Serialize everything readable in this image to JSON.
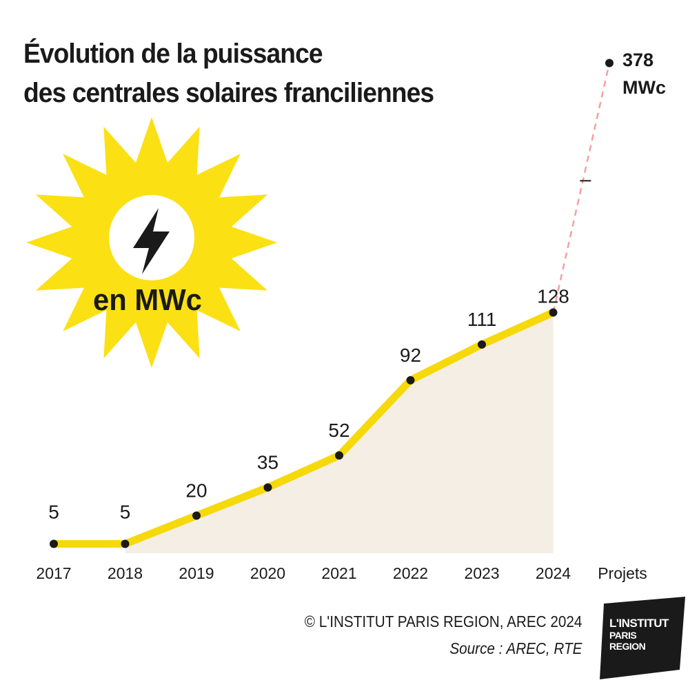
{
  "title": {
    "line1": "Évolution de la puissance",
    "line2": "des centrales solaires franciliennes"
  },
  "unit_label": "en MWc",
  "chart_data": {
    "type": "area",
    "title": "Évolution de la puissance des centrales solaires franciliennes",
    "unit": "MWc",
    "categories": [
      "2017",
      "2018",
      "2019",
      "2020",
      "2021",
      "2022",
      "2023",
      "2024"
    ],
    "values": [
      5,
      5,
      20,
      35,
      52,
      92,
      111,
      128
    ],
    "value_labels": [
      "5",
      "5",
      "20",
      "35",
      "52",
      "92",
      "111",
      "128"
    ],
    "projection": {
      "category": "Projets",
      "value": 378,
      "label_value": "378",
      "label_unit": "MWc",
      "style": "dashed"
    },
    "ylim": [
      0,
      378
    ],
    "grid": false,
    "colors": {
      "line": "#f5d90a",
      "area": "#f4eee4",
      "sun": "#fbe014",
      "dashed": "#f2a0a0",
      "text": "#1a1a1a"
    }
  },
  "footer": {
    "copyright": "© L'INSTITUT PARIS REGION, AREC 2024",
    "source": "Source : AREC, RTE"
  },
  "logo": {
    "line1": "L'INSTITUT",
    "line2": "PARIS",
    "line3": "REGION"
  }
}
